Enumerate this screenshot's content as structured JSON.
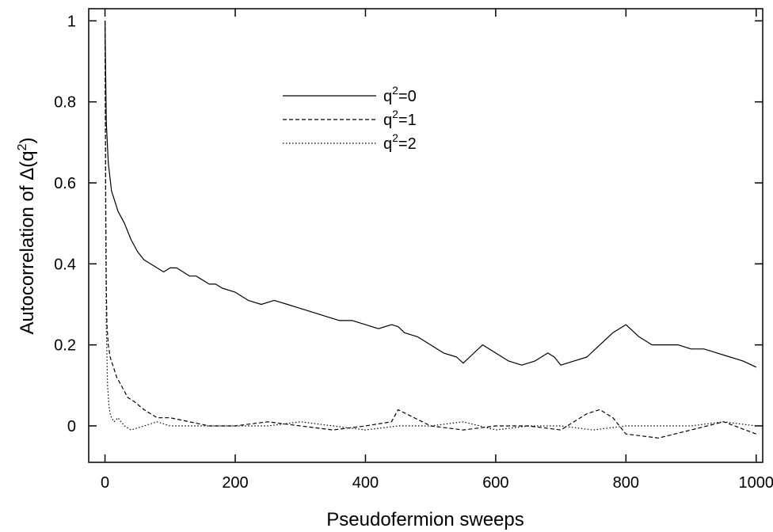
{
  "chart_data": {
    "type": "line",
    "xlabel": "Pseudofermion sweeps",
    "ylabel_main": "Autocorrelation of Δ(q",
    "ylabel_sup": "2",
    "ylabel_close": ")",
    "xlim": [
      -25,
      1010
    ],
    "ylim": [
      -0.09,
      1.03
    ],
    "xticks": [
      0,
      200,
      400,
      600,
      800,
      1000
    ],
    "xtick_labels": [
      "0",
      "200",
      "400",
      "600",
      "800",
      "1000"
    ],
    "yticks": [
      0,
      0.2,
      0.4,
      0.6,
      0.8,
      1
    ],
    "ytick_labels": [
      "0",
      "0.2",
      "0.4",
      "0.6",
      "0.8",
      "1"
    ],
    "grid": false,
    "legend_position": "upper-center",
    "series": [
      {
        "label_base": "q",
        "label_sup": "2",
        "label_rest": "=0",
        "style": "solid",
        "x": [
          0,
          2,
          5,
          10,
          20,
          30,
          40,
          50,
          60,
          70,
          80,
          90,
          100,
          110,
          120,
          130,
          140,
          150,
          160,
          170,
          180,
          200,
          220,
          240,
          260,
          280,
          300,
          320,
          340,
          360,
          380,
          400,
          420,
          440,
          450,
          460,
          480,
          500,
          520,
          540,
          550,
          560,
          580,
          600,
          620,
          640,
          660,
          680,
          690,
          700,
          720,
          740,
          760,
          780,
          800,
          820,
          840,
          860,
          880,
          900,
          920,
          940,
          960,
          980,
          1000
        ],
        "y": [
          1.0,
          0.75,
          0.65,
          0.58,
          0.53,
          0.5,
          0.46,
          0.43,
          0.41,
          0.4,
          0.39,
          0.38,
          0.39,
          0.39,
          0.38,
          0.37,
          0.37,
          0.36,
          0.35,
          0.35,
          0.34,
          0.33,
          0.31,
          0.3,
          0.31,
          0.3,
          0.29,
          0.28,
          0.27,
          0.26,
          0.26,
          0.25,
          0.24,
          0.25,
          0.245,
          0.23,
          0.22,
          0.2,
          0.18,
          0.17,
          0.155,
          0.17,
          0.2,
          0.18,
          0.16,
          0.15,
          0.16,
          0.18,
          0.17,
          0.15,
          0.16,
          0.17,
          0.2,
          0.23,
          0.25,
          0.22,
          0.2,
          0.2,
          0.2,
          0.19,
          0.19,
          0.18,
          0.17,
          0.16,
          0.145
        ]
      },
      {
        "label_base": "q",
        "label_sup": "2",
        "label_rest": "=1",
        "style": "dashed",
        "x": [
          0,
          1,
          2,
          3,
          5,
          8,
          12,
          18,
          25,
          35,
          45,
          60,
          80,
          100,
          130,
          160,
          200,
          250,
          300,
          350,
          400,
          440,
          450,
          500,
          550,
          600,
          650,
          700,
          740,
          760,
          780,
          800,
          850,
          900,
          950,
          1000
        ],
        "y": [
          1.0,
          0.6,
          0.35,
          0.25,
          0.2,
          0.17,
          0.15,
          0.12,
          0.1,
          0.07,
          0.06,
          0.04,
          0.02,
          0.02,
          0.01,
          0.0,
          0.0,
          0.01,
          0.0,
          -0.01,
          0.0,
          0.01,
          0.04,
          0.0,
          -0.01,
          0.0,
          0.0,
          -0.01,
          0.03,
          0.04,
          0.02,
          -0.02,
          -0.03,
          -0.01,
          0.01,
          -0.02
        ]
      },
      {
        "label_base": "q",
        "label_sup": "2",
        "label_rest": "=2",
        "style": "dotted",
        "x": [
          0,
          1,
          2,
          4,
          6,
          8,
          10,
          14,
          20,
          30,
          40,
          60,
          80,
          100,
          150,
          200,
          250,
          300,
          350,
          400,
          450,
          500,
          550,
          600,
          650,
          700,
          750,
          800,
          850,
          900,
          950,
          1000
        ],
        "y": [
          1.0,
          0.5,
          0.25,
          0.1,
          0.05,
          0.03,
          0.02,
          0.01,
          0.02,
          0.0,
          -0.01,
          0.0,
          0.01,
          0.0,
          0.0,
          0.0,
          0.0,
          0.01,
          0.0,
          -0.01,
          0.0,
          0.0,
          0.01,
          -0.01,
          0.0,
          0.0,
          -0.01,
          0.0,
          0.0,
          0.0,
          0.01,
          0.0
        ]
      }
    ]
  }
}
